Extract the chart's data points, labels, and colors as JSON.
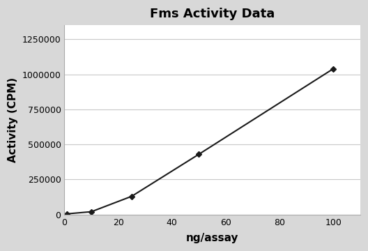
{
  "title": "Fms Activity Data",
  "xlabel": "ng/assay",
  "ylabel": "Activity (CPM)",
  "x_data": [
    1,
    10,
    25,
    50,
    100
  ],
  "y_data": [
    5000,
    20000,
    130000,
    430000,
    1040000
  ],
  "xlim": [
    0,
    110
  ],
  "ylim": [
    0,
    1350000
  ],
  "x_ticks": [
    0,
    20,
    40,
    60,
    80,
    100
  ],
  "y_ticks": [
    0,
    250000,
    500000,
    750000,
    1000000,
    1250000
  ],
  "line_color": "#1a1a1a",
  "marker": "D",
  "marker_size": 4,
  "marker_color": "#1a1a1a",
  "title_fontsize": 13,
  "label_fontsize": 11,
  "tick_fontsize": 9,
  "grid_color": "#c8c8c8",
  "plot_bg_color": "#ffffff",
  "fig_bg_color": "#d8d8d8",
  "outer_bg_color": "#d8d8d8",
  "title_fontweight": "bold",
  "label_fontweight": "bold"
}
